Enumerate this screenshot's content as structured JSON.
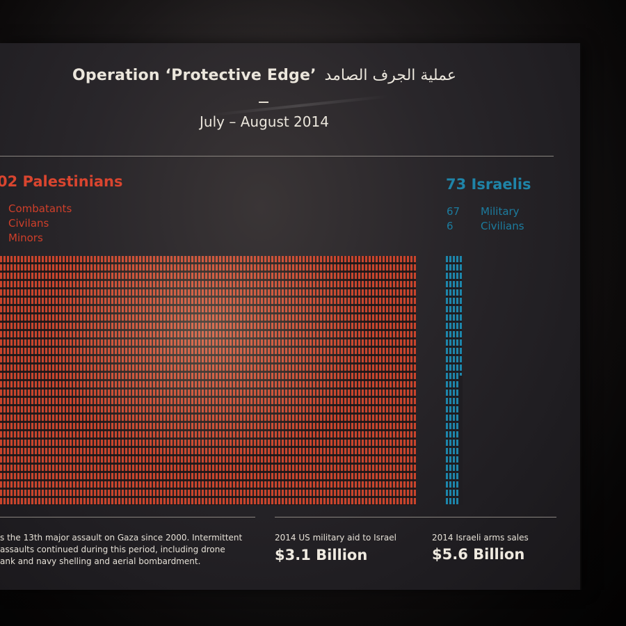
{
  "title": {
    "english": "Operation ‘Protective Edge’",
    "arabic": "عملية الجرف الصامد"
  },
  "subtitle": "July – August 2014",
  "palestinians": {
    "heading": "02 Palestinians",
    "legend": [
      "Combatants",
      "Civilans",
      "Minors"
    ],
    "color": "#d9452f"
  },
  "israelis": {
    "heading": "73 Israelis",
    "legend": [
      {
        "count": "67",
        "label": "Military"
      },
      {
        "count": "6",
        "label": "Civilians"
      }
    ],
    "color": "#1f84a8"
  },
  "footer": {
    "text_lines": [
      "s the 13th major assault on Gaza since 2000. Intermittent",
      "assaults continued during this period, including drone",
      "ank and navy shelling and aerial bombardment."
    ],
    "us_aid_label": "2014 US military aid to Israel",
    "us_aid_value": "$3.1 Billion",
    "arms_label": "2014 Israeli arms sales",
    "arms_value": "$5.6 Billion"
  }
}
